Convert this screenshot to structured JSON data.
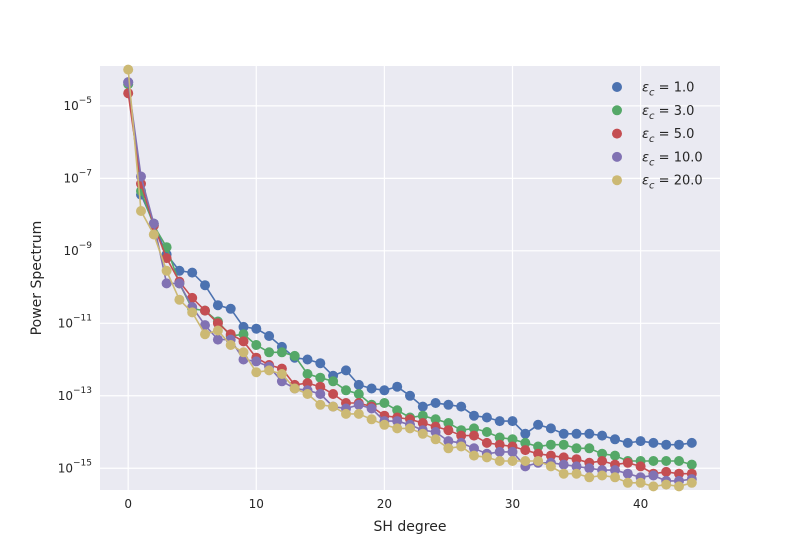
{
  "chart_data": {
    "type": "scatter",
    "title": "",
    "xlabel": "SH degree",
    "ylabel": "Power Spectrum",
    "xlim": [
      -2.2,
      46.2
    ],
    "ylim_log10": [
      -15.6,
      -3.9
    ],
    "y_scale": "log",
    "x_ticks": [
      0,
      10,
      20,
      30,
      40
    ],
    "x_tick_labels": [
      "0",
      "10",
      "20",
      "30",
      "40"
    ],
    "y_tick_exponents": [
      -15,
      -13,
      -11,
      -9,
      -7,
      -5
    ],
    "y_tick_labels": [
      "10",
      "10",
      "10",
      "10",
      "10",
      "10"
    ],
    "y_tick_superscripts": [
      "−15",
      "−13",
      "−11",
      "−9",
      "−7",
      "−5"
    ],
    "grid": true,
    "background": "#eaeaf2",
    "legend_position": "top-right",
    "legend_prefix": "ε",
    "legend_subscript": "c",
    "x": [
      0,
      1,
      2,
      3,
      4,
      5,
      6,
      7,
      8,
      9,
      10,
      11,
      12,
      13,
      14,
      15,
      16,
      17,
      18,
      19,
      20,
      21,
      22,
      23,
      24,
      25,
      26,
      27,
      28,
      29,
      30,
      31,
      32,
      33,
      34,
      35,
      36,
      37,
      38,
      39,
      40,
      41,
      42,
      43,
      44
    ],
    "series": [
      {
        "name": " = 1.0",
        "color": "#4c72b0",
        "log10_values": [
          -4.35,
          -7.45,
          -8.25,
          -9.1,
          -9.55,
          -9.6,
          -9.95,
          -10.5,
          -10.6,
          -11.1,
          -11.15,
          -11.35,
          -11.65,
          -11.95,
          -12.0,
          -12.1,
          -12.45,
          -12.3,
          -12.7,
          -12.8,
          -12.85,
          -12.75,
          -13.0,
          -13.3,
          -13.2,
          -13.25,
          -13.3,
          -13.55,
          -13.6,
          -13.7,
          -13.7,
          -14.05,
          -13.8,
          -13.9,
          -14.05,
          -14.05,
          -14.05,
          -14.1,
          -14.2,
          -14.3,
          -14.25,
          -14.3,
          -14.35,
          -14.35,
          -14.3
        ]
      },
      {
        "name": " = 3.0",
        "color": "#55a868",
        "log10_values": [
          -4.4,
          -7.35,
          -8.3,
          -8.9,
          -9.9,
          -10.6,
          -10.65,
          -10.95,
          -11.35,
          -11.3,
          -11.6,
          -11.8,
          -11.8,
          -11.9,
          -12.4,
          -12.5,
          -12.6,
          -12.85,
          -12.95,
          -13.25,
          -13.2,
          -13.4,
          -13.6,
          -13.55,
          -13.65,
          -13.75,
          -13.95,
          -13.9,
          -14.0,
          -14.15,
          -14.2,
          -14.3,
          -14.4,
          -14.35,
          -14.35,
          -14.45,
          -14.45,
          -14.6,
          -14.65,
          -14.8,
          -14.8,
          -14.8,
          -14.8,
          -14.8,
          -14.9
        ]
      },
      {
        "name": " = 5.0",
        "color": "#c44e52",
        "log10_values": [
          -4.65,
          -7.15,
          -8.3,
          -9.2,
          -9.85,
          -10.3,
          -10.65,
          -11.0,
          -11.3,
          -11.5,
          -11.95,
          -12.15,
          -12.25,
          -12.7,
          -12.65,
          -12.75,
          -12.95,
          -13.2,
          -13.2,
          -13.3,
          -13.55,
          -13.6,
          -13.65,
          -13.75,
          -13.85,
          -13.95,
          -14.1,
          -14.1,
          -14.3,
          -14.35,
          -14.4,
          -14.5,
          -14.6,
          -14.65,
          -14.7,
          -14.75,
          -14.85,
          -14.8,
          -14.9,
          -14.85,
          -14.95,
          -15.15,
          -15.1,
          -15.15,
          -15.15
        ]
      },
      {
        "name": " = 10.0",
        "color": "#8172b3",
        "log10_values": [
          -4.35,
          -6.95,
          -8.25,
          -9.9,
          -9.9,
          -10.55,
          -11.05,
          -11.45,
          -11.45,
          -12.0,
          -12.05,
          -12.2,
          -12.6,
          -12.8,
          -12.85,
          -12.95,
          -13.3,
          -13.35,
          -13.25,
          -13.35,
          -13.7,
          -13.7,
          -13.8,
          -13.95,
          -14.0,
          -14.25,
          -14.3,
          -14.45,
          -14.6,
          -14.55,
          -14.55,
          -14.95,
          -14.85,
          -14.85,
          -14.9,
          -14.95,
          -15.0,
          -15.05,
          -15.05,
          -15.15,
          -15.25,
          -15.2,
          -15.35,
          -15.35,
          -15.3
        ]
      },
      {
        "name": " = 20.0",
        "color": "#ccb974",
        "log10_values": [
          -4.0,
          -7.9,
          -8.55,
          -9.55,
          -10.35,
          -10.7,
          -11.3,
          -11.2,
          -11.6,
          -11.8,
          -12.35,
          -12.3,
          -12.4,
          -12.8,
          -12.95,
          -13.25,
          -13.3,
          -13.5,
          -13.5,
          -13.65,
          -13.8,
          -13.9,
          -13.9,
          -14.05,
          -14.2,
          -14.45,
          -14.4,
          -14.65,
          -14.7,
          -14.8,
          -14.8,
          -14.8,
          -14.8,
          -14.95,
          -15.15,
          -15.15,
          -15.25,
          -15.2,
          -15.25,
          -15.4,
          -15.4,
          -15.5,
          -15.45,
          -15.5,
          -15.4
        ]
      }
    ]
  }
}
